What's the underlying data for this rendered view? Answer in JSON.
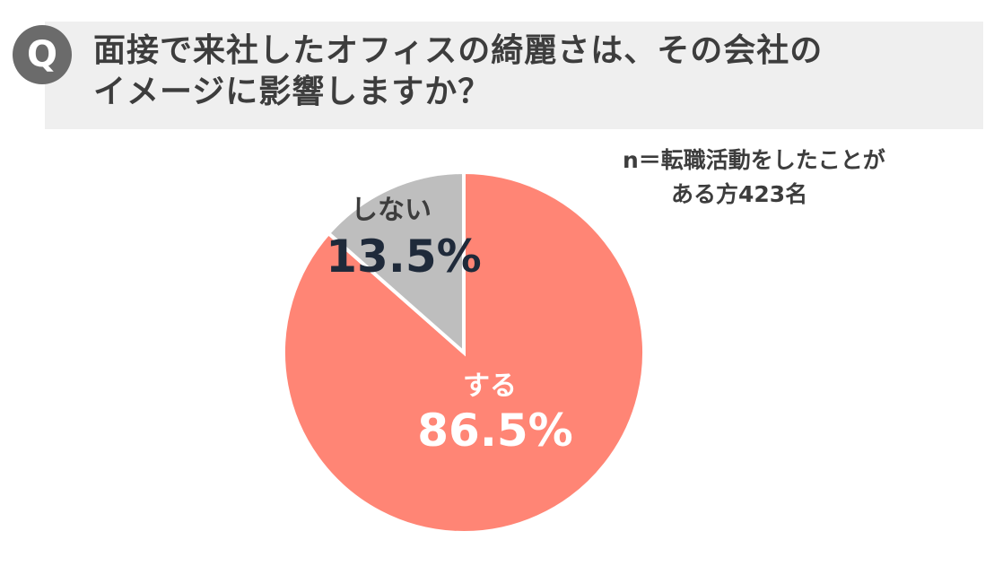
{
  "question": {
    "badge": "Q",
    "line1": "面接で来社したオフィスの綺麗さは、その会社の",
    "line2": "イメージに影響しますか？"
  },
  "sample_note": {
    "line1": "n＝転職活動をしたことが",
    "line2": "ある方423名"
  },
  "colors": {
    "yes": "#ff8575",
    "no": "#bebebe",
    "yes_label": "#ffffff",
    "no_label_name": "#3d3d3d",
    "no_label_value": "#1f2a3a"
  },
  "chart_data": {
    "type": "pie",
    "title": "",
    "slices": [
      {
        "label": "する",
        "value": 86.5,
        "value_text": "86.5%"
      },
      {
        "label": "しない",
        "value": 13.5,
        "value_text": "13.5%"
      }
    ]
  }
}
